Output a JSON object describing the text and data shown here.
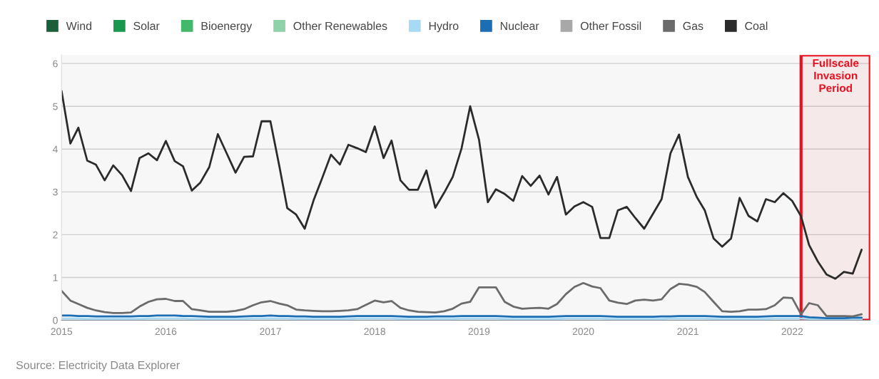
{
  "chart_data": {
    "type": "line",
    "x": [
      "2015-01",
      "2015-02",
      "2015-03",
      "2015-04",
      "2015-05",
      "2015-06",
      "2015-07",
      "2015-08",
      "2015-09",
      "2015-10",
      "2015-11",
      "2015-12",
      "2016-01",
      "2016-02",
      "2016-03",
      "2016-04",
      "2016-05",
      "2016-06",
      "2016-07",
      "2016-08",
      "2016-09",
      "2016-10",
      "2016-11",
      "2016-12",
      "2017-01",
      "2017-02",
      "2017-03",
      "2017-04",
      "2017-05",
      "2017-06",
      "2017-07",
      "2017-08",
      "2017-09",
      "2017-10",
      "2017-11",
      "2017-12",
      "2018-01",
      "2018-02",
      "2018-03",
      "2018-04",
      "2018-05",
      "2018-06",
      "2018-07",
      "2018-08",
      "2018-09",
      "2018-10",
      "2018-11",
      "2018-12",
      "2019-01",
      "2019-02",
      "2019-03",
      "2019-04",
      "2019-05",
      "2019-06",
      "2019-07",
      "2019-08",
      "2019-09",
      "2019-10",
      "2019-11",
      "2019-12",
      "2020-01",
      "2020-02",
      "2020-03",
      "2020-04",
      "2020-05",
      "2020-06",
      "2020-07",
      "2020-08",
      "2020-09",
      "2020-10",
      "2020-11",
      "2020-12",
      "2021-01",
      "2021-02",
      "2021-03",
      "2021-04",
      "2021-05",
      "2021-06",
      "2021-07",
      "2021-08",
      "2021-09",
      "2021-10",
      "2021-11",
      "2021-12",
      "2022-01",
      "2022-02",
      "2022-03",
      "2022-04",
      "2022-05",
      "2022-06",
      "2022-07",
      "2022-08",
      "2022-09"
    ],
    "series": [
      {
        "name": "Wind",
        "color": "#1a5e3a",
        "values": [
          null,
          null,
          null,
          null,
          null,
          null,
          null,
          null,
          null,
          null,
          null,
          null,
          null,
          null,
          null,
          null,
          null,
          null,
          null,
          null,
          null,
          null,
          null,
          null,
          null,
          null,
          null,
          null,
          null,
          null,
          null,
          null,
          null,
          null,
          null,
          null,
          null,
          null,
          null,
          null,
          null,
          null,
          null,
          null,
          null,
          null,
          null,
          null,
          null,
          null,
          null,
          null,
          null,
          null,
          null,
          null,
          null,
          null,
          null,
          null,
          null,
          null,
          null,
          null,
          null,
          null,
          null,
          null,
          null,
          null,
          null,
          null,
          null,
          null,
          null,
          null,
          null,
          null,
          null,
          null,
          null,
          null,
          null,
          null,
          null,
          null,
          null,
          null,
          null,
          null,
          null,
          null,
          null
        ]
      },
      {
        "name": "Solar",
        "color": "#1a9850",
        "values": [
          null,
          null,
          null,
          null,
          null,
          null,
          null,
          null,
          null,
          null,
          null,
          null,
          null,
          null,
          null,
          null,
          null,
          null,
          null,
          null,
          null,
          null,
          null,
          null,
          null,
          null,
          null,
          null,
          null,
          null,
          null,
          null,
          null,
          null,
          null,
          null,
          null,
          null,
          null,
          null,
          null,
          null,
          null,
          null,
          null,
          null,
          null,
          null,
          null,
          null,
          null,
          null,
          null,
          null,
          null,
          null,
          null,
          null,
          null,
          null,
          null,
          null,
          null,
          null,
          null,
          null,
          null,
          null,
          null,
          null,
          null,
          null,
          null,
          null,
          null,
          null,
          null,
          null,
          null,
          null,
          null,
          null,
          null,
          null,
          null,
          null,
          null,
          null,
          null,
          null,
          null,
          null,
          null
        ]
      },
      {
        "name": "Bioenergy",
        "color": "#41b86a",
        "values": [
          null,
          null,
          null,
          null,
          null,
          null,
          null,
          null,
          null,
          null,
          null,
          null,
          null,
          null,
          null,
          null,
          null,
          null,
          null,
          null,
          null,
          null,
          null,
          null,
          null,
          null,
          null,
          null,
          null,
          null,
          null,
          null,
          null,
          null,
          null,
          null,
          null,
          null,
          null,
          null,
          null,
          null,
          null,
          null,
          null,
          null,
          null,
          null,
          null,
          null,
          null,
          null,
          null,
          null,
          null,
          null,
          null,
          null,
          null,
          null,
          null,
          null,
          null,
          null,
          null,
          null,
          null,
          null,
          null,
          null,
          null,
          null,
          null,
          null,
          null,
          null,
          null,
          null,
          null,
          null,
          null,
          null,
          null,
          null,
          null,
          null,
          null,
          null,
          null,
          null,
          null,
          null,
          null
        ]
      },
      {
        "name": "Other Renewables",
        "color": "#8fd1a8",
        "values": [
          null,
          null,
          null,
          null,
          null,
          null,
          null,
          null,
          null,
          null,
          null,
          null,
          null,
          null,
          null,
          null,
          null,
          null,
          null,
          null,
          null,
          null,
          null,
          null,
          null,
          null,
          null,
          null,
          null,
          null,
          null,
          null,
          null,
          null,
          null,
          null,
          null,
          null,
          null,
          null,
          null,
          null,
          null,
          null,
          null,
          null,
          null,
          null,
          null,
          null,
          null,
          null,
          null,
          null,
          null,
          null,
          null,
          null,
          null,
          null,
          null,
          null,
          null,
          null,
          null,
          null,
          null,
          null,
          null,
          null,
          null,
          null,
          null,
          null,
          null,
          null,
          null,
          null,
          null,
          null,
          null,
          null,
          null,
          null,
          null,
          null,
          null,
          null,
          null,
          null,
          null,
          null,
          null
        ]
      },
      {
        "name": "Hydro",
        "color": "#a9daf5",
        "values": [
          0.04,
          0.04,
          0.04,
          0.03,
          0.03,
          0.03,
          0.03,
          0.03,
          0.03,
          0.03,
          0.04,
          0.04,
          0.04,
          0.04,
          0.04,
          0.03,
          0.03,
          0.03,
          0.03,
          0.03,
          0.03,
          0.03,
          0.04,
          0.04,
          0.04,
          0.04,
          0.04,
          0.03,
          0.03,
          0.03,
          0.03,
          0.03,
          0.03,
          0.03,
          0.04,
          0.04,
          0.04,
          0.04,
          0.04,
          0.03,
          0.03,
          0.03,
          0.03,
          0.03,
          0.03,
          0.03,
          0.04,
          0.04,
          0.04,
          0.04,
          0.04,
          0.03,
          0.03,
          0.03,
          0.03,
          0.03,
          0.03,
          0.03,
          0.04,
          0.04,
          0.04,
          0.04,
          0.04,
          0.03,
          0.03,
          0.03,
          0.03,
          0.03,
          0.03,
          0.03,
          0.04,
          0.04,
          0.04,
          0.04,
          0.04,
          0.03,
          0.03,
          0.03,
          0.03,
          0.03,
          0.03,
          0.03,
          0.04,
          0.04,
          0.04,
          0.04,
          0.03,
          0.02,
          0.02,
          0.02,
          0.02,
          0.02,
          0.02
        ]
      },
      {
        "name": "Nuclear",
        "color": "#1c6eb4",
        "values": [
          0.11,
          0.11,
          0.1,
          0.1,
          0.09,
          0.09,
          0.09,
          0.09,
          0.09,
          0.1,
          0.1,
          0.11,
          0.11,
          0.11,
          0.1,
          0.1,
          0.09,
          0.08,
          0.08,
          0.08,
          0.08,
          0.09,
          0.1,
          0.1,
          0.11,
          0.1,
          0.1,
          0.09,
          0.09,
          0.08,
          0.08,
          0.08,
          0.08,
          0.09,
          0.1,
          0.1,
          0.1,
          0.1,
          0.1,
          0.09,
          0.08,
          0.08,
          0.08,
          0.09,
          0.09,
          0.09,
          0.1,
          0.1,
          0.1,
          0.1,
          0.1,
          0.09,
          0.08,
          0.08,
          0.08,
          0.08,
          0.08,
          0.09,
          0.1,
          0.1,
          0.1,
          0.1,
          0.1,
          0.09,
          0.08,
          0.08,
          0.08,
          0.08,
          0.08,
          0.09,
          0.09,
          0.1,
          0.1,
          0.1,
          0.1,
          0.09,
          0.08,
          0.08,
          0.08,
          0.08,
          0.08,
          0.09,
          0.1,
          0.1,
          0.1,
          0.1,
          0.07,
          0.06,
          0.05,
          0.05,
          0.05,
          0.06,
          0.06
        ]
      },
      {
        "name": "Other Fossil",
        "color": "#a8a8a8",
        "values": [
          null,
          null,
          null,
          null,
          null,
          null,
          null,
          null,
          null,
          null,
          null,
          null,
          null,
          null,
          null,
          null,
          null,
          null,
          null,
          null,
          null,
          null,
          null,
          null,
          null,
          null,
          null,
          null,
          null,
          null,
          null,
          null,
          null,
          null,
          null,
          null,
          null,
          null,
          null,
          null,
          null,
          null,
          null,
          null,
          null,
          null,
          null,
          null,
          null,
          null,
          null,
          null,
          null,
          null,
          null,
          null,
          null,
          null,
          null,
          null,
          null,
          null,
          null,
          null,
          null,
          null,
          null,
          null,
          null,
          null,
          null,
          null,
          null,
          null,
          null,
          null,
          null,
          null,
          null,
          null,
          null,
          null,
          null,
          null,
          null,
          null,
          null,
          null,
          null,
          null,
          null,
          null,
          null
        ]
      },
      {
        "name": "Gas",
        "color": "#6b6b6b",
        "values": [
          0.69,
          0.46,
          0.38,
          0.29,
          0.23,
          0.19,
          0.17,
          0.17,
          0.18,
          0.32,
          0.43,
          0.49,
          0.5,
          0.45,
          0.45,
          0.26,
          0.23,
          0.2,
          0.2,
          0.2,
          0.22,
          0.26,
          0.35,
          0.42,
          0.45,
          0.39,
          0.35,
          0.25,
          0.23,
          0.22,
          0.21,
          0.21,
          0.22,
          0.23,
          0.26,
          0.36,
          0.46,
          0.42,
          0.45,
          0.29,
          0.23,
          0.2,
          0.19,
          0.18,
          0.21,
          0.27,
          0.39,
          0.43,
          0.77,
          0.77,
          0.77,
          0.43,
          0.32,
          0.27,
          0.28,
          0.29,
          0.27,
          0.38,
          0.61,
          0.78,
          0.87,
          0.79,
          0.75,
          0.46,
          0.41,
          0.38,
          0.46,
          0.48,
          0.46,
          0.49,
          0.73,
          0.85,
          0.83,
          0.78,
          0.66,
          0.43,
          0.21,
          0.2,
          0.21,
          0.25,
          0.25,
          0.26,
          0.35,
          0.53,
          0.52,
          0.14,
          0.4,
          0.35,
          0.1,
          0.1,
          0.1,
          0.09,
          0.14
        ]
      },
      {
        "name": "Coal",
        "color": "#2b2b2b",
        "values": [
          5.36,
          4.13,
          4.5,
          3.73,
          3.64,
          3.27,
          3.62,
          3.39,
          3.02,
          3.79,
          3.9,
          3.74,
          4.19,
          3.72,
          3.6,
          3.03,
          3.22,
          3.58,
          4.35,
          3.9,
          3.45,
          3.82,
          3.83,
          4.65,
          4.65,
          3.61,
          2.62,
          2.47,
          2.14,
          2.8,
          3.32,
          3.87,
          3.64,
          4.1,
          4.02,
          3.93,
          4.53,
          3.79,
          4.2,
          3.27,
          3.05,
          3.05,
          3.5,
          2.63,
          2.98,
          3.35,
          4.02,
          5.0,
          4.22,
          2.76,
          3.06,
          2.95,
          2.79,
          3.37,
          3.14,
          3.38,
          2.94,
          3.35,
          2.47,
          2.66,
          2.76,
          2.65,
          1.92,
          1.92,
          2.57,
          2.65,
          2.39,
          2.14,
          2.49,
          2.83,
          3.9,
          4.34,
          3.35,
          2.88,
          2.57,
          1.91,
          1.72,
          1.91,
          2.86,
          2.44,
          2.31,
          2.83,
          2.76,
          2.97,
          2.79,
          2.43,
          1.76,
          1.37,
          1.07,
          0.97,
          1.13,
          1.09,
          1.65
        ]
      }
    ],
    "xlim": [
      "2015-01",
      "2022-10"
    ],
    "xticks": [
      "2015",
      "2016",
      "2017",
      "2018",
      "2019",
      "2020",
      "2021",
      "2022"
    ],
    "ylim": [
      0,
      6.2
    ],
    "yticks": [
      0,
      1,
      2,
      3,
      4,
      5,
      6
    ],
    "grid": "y",
    "legend": "top left",
    "marker": "none",
    "line_style": "solid",
    "bands": [
      {
        "axis": "x",
        "from": "2022-02",
        "to": "2022-10",
        "label": "Fullscale\nInvasion\nPeriod",
        "color": "#e8101e"
      }
    ],
    "annotations": [
      "Source: Electricity Data Explorer"
    ]
  }
}
